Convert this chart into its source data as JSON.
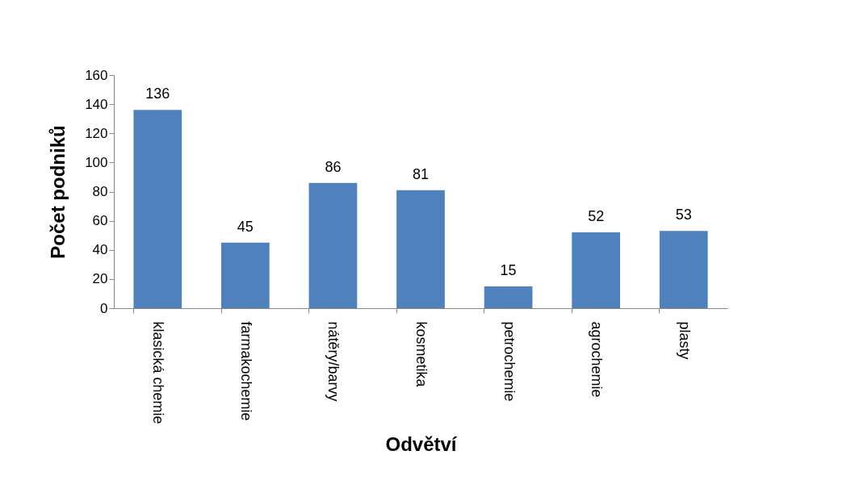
{
  "chart_data": {
    "type": "bar",
    "xlabel": "Odvětví",
    "ylabel": "Počet podniků",
    "categories": [
      "klasická chemie",
      "farmakochemie",
      "nátěry/barvy",
      "kosmetika",
      "petrochemie",
      "agrochemie",
      "plasty"
    ],
    "values": [
      136,
      45,
      86,
      81,
      15,
      52,
      53
    ],
    "color": "#4f81bd",
    "ylim": [
      0,
      160
    ],
    "yticks": [
      0,
      20,
      40,
      60,
      80,
      100,
      120,
      140,
      160
    ],
    "grid": false,
    "data_labels": true
  }
}
